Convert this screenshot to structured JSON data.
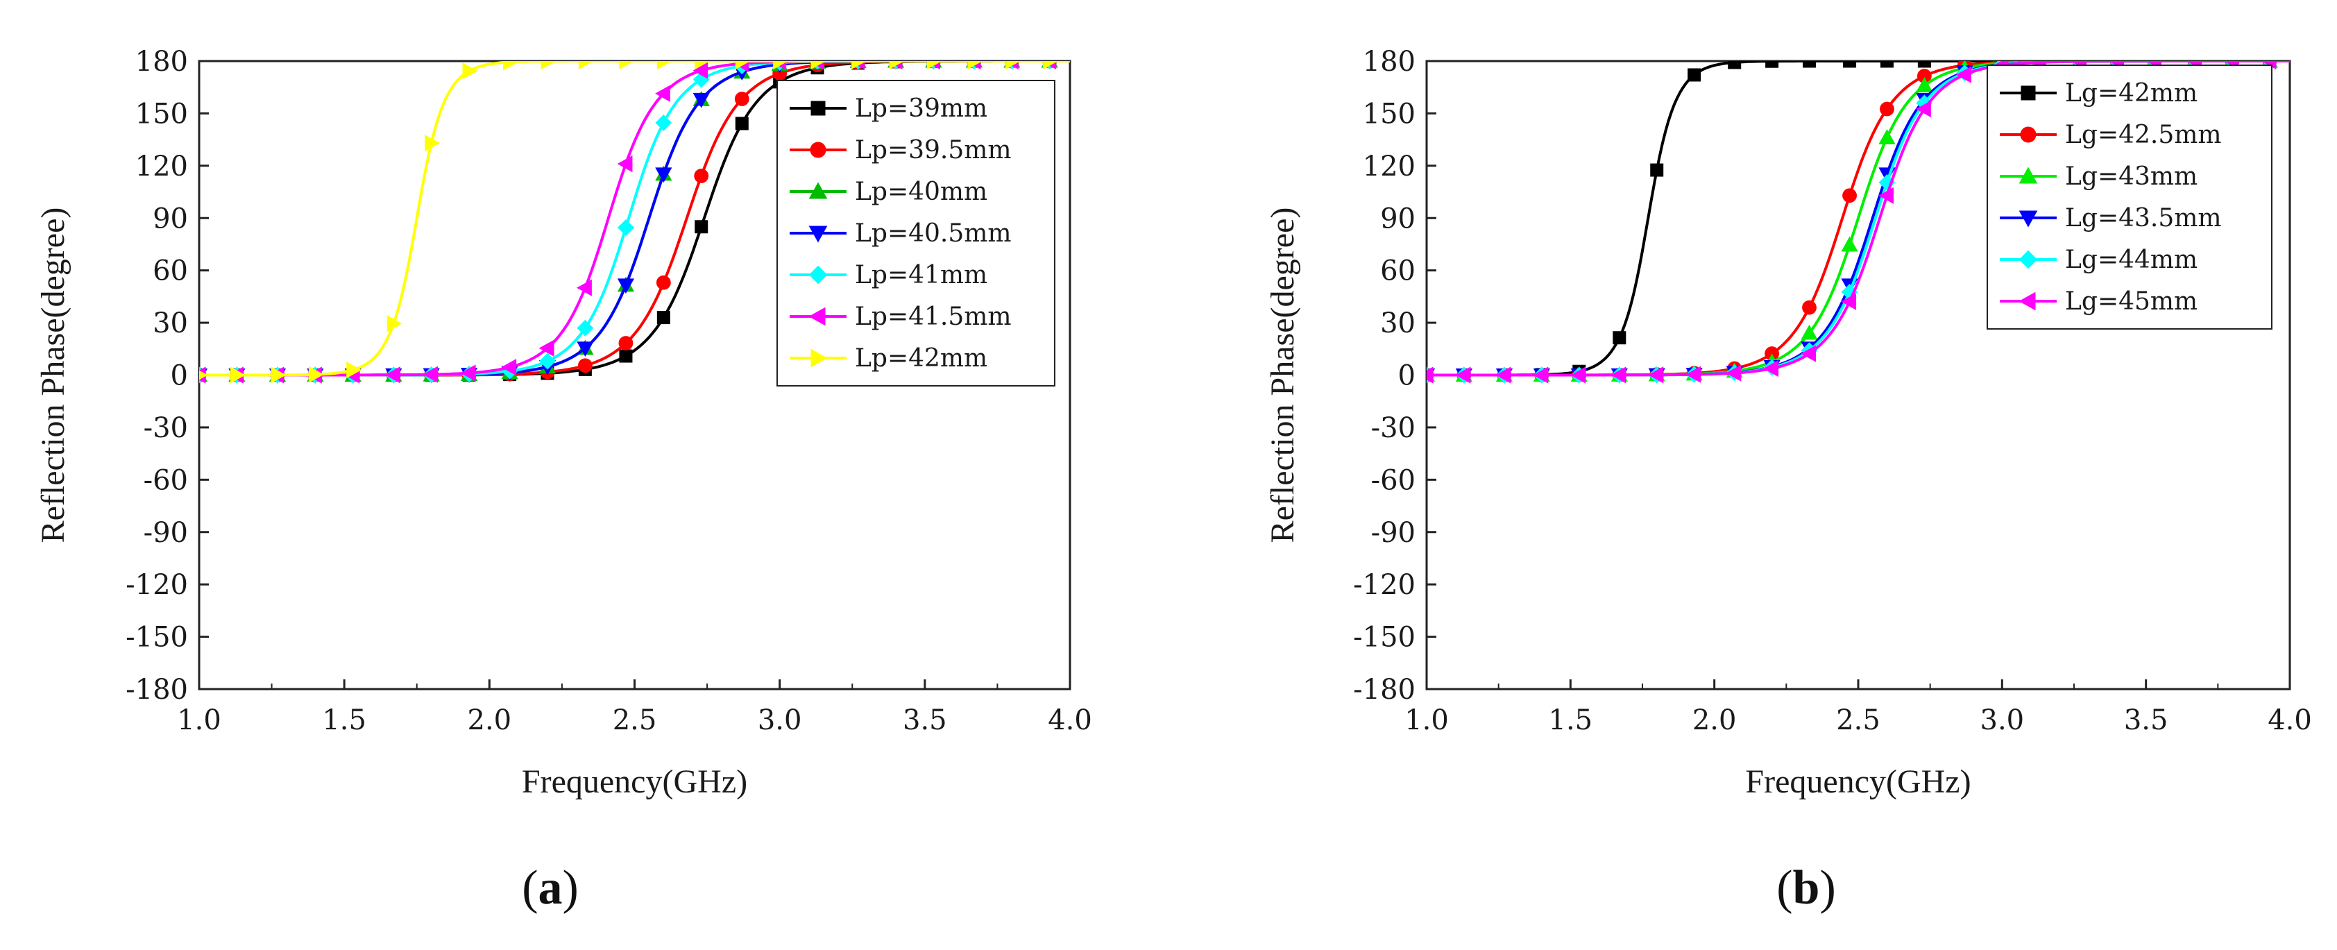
{
  "captions": {
    "a": {
      "open": "(",
      "letter": "a",
      "close": ")"
    },
    "b": {
      "open": "(",
      "letter": "b",
      "close": ")"
    }
  },
  "chart_data": [
    {
      "panel": "a",
      "type": "line",
      "xlabel": "Frequency(GHz)",
      "ylabel": "Reflection Phase(degree)",
      "xlim": [
        1.0,
        4.0
      ],
      "ylim": [
        -180,
        180
      ],
      "xticks": [
        1.0,
        1.5,
        2.0,
        2.5,
        3.0,
        3.5,
        4.0
      ],
      "xtick_labels": [
        "1.0",
        "1.5",
        "2.0",
        "2.5",
        "3.0",
        "3.5",
        "4.0"
      ],
      "yticks": [
        180,
        150,
        120,
        90,
        60,
        30,
        0,
        -30,
        -60,
        -90,
        -120,
        -150,
        -180
      ],
      "ytick_labels": [
        "180",
        "150",
        "120",
        "90",
        "60",
        "30",
        "0",
        "-30",
        "-60",
        "-90",
        "-120",
        "-150",
        "-180"
      ],
      "legend_position": "top-right",
      "series": [
        {
          "name": "Lp=39mm",
          "color": "#000000",
          "marker": "square",
          "f0": 2.74,
          "w": 0.115
        },
        {
          "name": "Lp=39.5mm",
          "color": "#ff0000",
          "marker": "circle",
          "f0": 2.68,
          "w": 0.115
        },
        {
          "name": "Lp=40mm",
          "color": "#00bb00",
          "marker": "triangle-up",
          "f0": 2.55,
          "w": 0.11
        },
        {
          "name": "Lp=40.5mm",
          "color": "#0000ff",
          "marker": "triangle-down",
          "f0": 2.55,
          "w": 0.11
        },
        {
          "name": "Lp=41mm",
          "color": "#00ffff",
          "marker": "diamond",
          "f0": 2.48,
          "w": 0.105
        },
        {
          "name": "Lp=41.5mm",
          "color": "#ff00ff",
          "marker": "triangle-left",
          "f0": 2.41,
          "w": 0.105
        },
        {
          "name": "Lp=42mm",
          "color": "#ffff00",
          "marker": "triangle-right",
          "f0": 1.75,
          "w": 0.06
        }
      ],
      "marker_x": [
        1.0,
        1.13,
        1.27,
        1.4,
        1.53,
        1.67,
        1.8,
        1.93,
        2.07,
        2.2,
        2.33,
        2.47,
        2.6,
        2.73,
        2.87,
        3.0,
        3.13,
        3.27,
        3.4,
        3.53,
        3.67,
        3.8,
        3.93
      ]
    },
    {
      "panel": "b",
      "type": "line",
      "xlabel": "Frequency(GHz)",
      "ylabel": "Reflection Phase(degree)",
      "xlim": [
        1.0,
        4.0
      ],
      "ylim": [
        -180,
        180
      ],
      "xticks": [
        1.0,
        1.5,
        2.0,
        2.5,
        3.0,
        3.5,
        4.0
      ],
      "xtick_labels": [
        "1.0",
        "1.5",
        "2.0",
        "2.5",
        "3.0",
        "3.5",
        "4.0"
      ],
      "yticks": [
        180,
        150,
        120,
        90,
        60,
        30,
        0,
        -30,
        -60,
        -90,
        -120,
        -150,
        -180
      ],
      "ytick_labels": [
        "180",
        "150",
        "120",
        "90",
        "60",
        "30",
        "0",
        "-30",
        "-60",
        "-90",
        "-120",
        "-150",
        "-180"
      ],
      "legend_position": "top-right",
      "series": [
        {
          "name": "Lg=42mm",
          "color": "#000000",
          "marker": "square",
          "f0": 1.77,
          "w": 0.06
        },
        {
          "name": "Lg=42.5mm",
          "color": "#ff0000",
          "marker": "circle",
          "f0": 2.445,
          "w": 0.11
        },
        {
          "name": "Lg=43mm",
          "color": "#00ee00",
          "marker": "triangle-up",
          "f0": 2.5,
          "w": 0.11
        },
        {
          "name": "Lg=43.5mm",
          "color": "#0000ff",
          "marker": "triangle-down",
          "f0": 2.55,
          "w": 0.11
        },
        {
          "name": "Lg=44mm",
          "color": "#00ffff",
          "marker": "diamond",
          "f0": 2.56,
          "w": 0.11
        },
        {
          "name": "Lg=45mm",
          "color": "#ff00ff",
          "marker": "triangle-left",
          "f0": 2.575,
          "w": 0.11
        }
      ],
      "marker_x": [
        1.0,
        1.13,
        1.27,
        1.4,
        1.53,
        1.67,
        1.8,
        1.93,
        2.07,
        2.2,
        2.33,
        2.47,
        2.6,
        2.73,
        2.87,
        3.0,
        3.13,
        3.27,
        3.4,
        3.53,
        3.67,
        3.8,
        3.93
      ]
    }
  ]
}
